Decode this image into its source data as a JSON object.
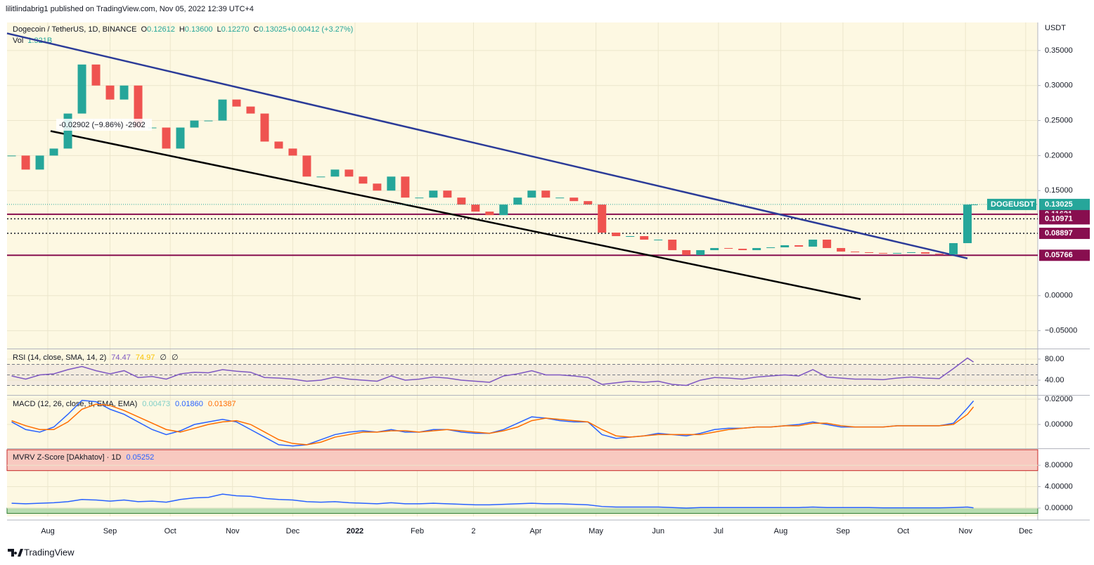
{
  "header": {
    "publisher": "lilitlindabrig1 published on TradingView.com, Nov 05, 2022 12:39 UTC+4",
    "brand": "TradingView"
  },
  "chart_data": [
    {
      "type": "candlestick",
      "title": "Dogecoin / TetherUS, 1D, BINANCE",
      "quote": [
        {
          "label": "O",
          "value": "0.12612"
        },
        {
          "label": "H",
          "value": "0.13600"
        },
        {
          "label": "L",
          "value": "0.12270"
        },
        {
          "label": "C",
          "value": "0.13025"
        },
        {
          "label": "",
          "value": "+0.00412 (+3.27%)"
        }
      ],
      "volume_label": "Vol",
      "volume_value": "1.321B",
      "unit": "USDT",
      "up_color": "#26a69a",
      "down_color": "#ef5350",
      "x": [
        -18,
        -11,
        -4,
        3,
        10,
        17,
        24,
        31,
        38,
        45,
        52,
        59,
        66,
        73,
        80,
        87,
        94,
        101,
        108,
        115,
        122,
        129,
        136,
        143,
        150,
        157,
        164,
        171,
        178,
        185,
        192,
        199,
        206,
        213,
        220,
        227,
        234,
        241,
        248,
        255,
        262,
        269,
        276,
        283,
        290,
        297,
        304,
        311,
        318,
        325,
        332,
        339,
        346,
        353,
        360,
        367,
        374,
        381,
        388,
        395,
        402,
        409,
        416,
        423,
        430,
        437,
        444,
        451,
        458,
        461
      ],
      "values": [
        0.2,
        0.18,
        0.2,
        0.21,
        0.26,
        0.33,
        0.3,
        0.28,
        0.3,
        0.24,
        0.24,
        0.21,
        0.24,
        0.25,
        0.25,
        0.28,
        0.27,
        0.26,
        0.22,
        0.21,
        0.2,
        0.17,
        0.17,
        0.18,
        0.17,
        0.16,
        0.15,
        0.17,
        0.14,
        0.14,
        0.15,
        0.14,
        0.13,
        0.12,
        0.115,
        0.13,
        0.14,
        0.15,
        0.14,
        0.14,
        0.135,
        0.13,
        0.09,
        0.085,
        0.085,
        0.08,
        0.08,
        0.065,
        0.058,
        0.065,
        0.068,
        0.067,
        0.065,
        0.068,
        0.069,
        0.072,
        0.07,
        0.08,
        0.068,
        0.063,
        0.062,
        0.061,
        0.06,
        0.061,
        0.062,
        0.06,
        0.059,
        0.075,
        0.13,
        0.13025
      ],
      "last_label": "DOGEUSDT",
      "xlim": [
        -20.3,
        493
      ],
      "xticks": [
        {
          "value": 0,
          "label": "Aug"
        },
        {
          "value": 31,
          "label": "Sep"
        },
        {
          "value": 61,
          "label": "Oct"
        },
        {
          "value": 92,
          "label": "Nov"
        },
        {
          "value": 122,
          "label": "Dec"
        },
        {
          "value": 153,
          "label": "2022"
        },
        {
          "value": 184,
          "label": "Feb"
        },
        {
          "value": 212,
          "label": "2"
        },
        {
          "value": 243,
          "label": "Apr"
        },
        {
          "value": 273,
          "label": "May"
        },
        {
          "value": 304,
          "label": "Jun"
        },
        {
          "value": 334,
          "label": "Jul"
        },
        {
          "value": 365,
          "label": "Aug"
        },
        {
          "value": 396,
          "label": "Sep"
        },
        {
          "value": 426,
          "label": "Oct"
        },
        {
          "value": 457,
          "label": "Nov"
        },
        {
          "value": 487,
          "label": "Dec"
        }
      ],
      "ylim": [
        -0.0745,
        0.39
      ],
      "yticks": [
        {
          "value": 0.35,
          "label": "0.35000"
        },
        {
          "value": 0.3,
          "label": "0.30000"
        },
        {
          "value": 0.25,
          "label": "0.25000"
        },
        {
          "value": 0.2,
          "label": "0.20000"
        },
        {
          "value": 0.15,
          "label": "0.15000"
        },
        {
          "value": 0,
          "label": "0.00000"
        },
        {
          "value": -0.05,
          "label": "−0.05000"
        }
      ],
      "levels": [
        {
          "value": 0.11621,
          "style": "solid"
        },
        {
          "value": 0.10971,
          "style": "dotted"
        },
        {
          "value": 0.08897,
          "style": "dotted"
        },
        {
          "value": 0.05766,
          "style": "solid"
        }
      ],
      "level_color": "#880e4f",
      "trendlines": [
        {
          "x": [
            -20.3,
            458
          ],
          "y": [
            0.3745,
            0.0532
          ],
          "color": "#2b3b98"
        },
        {
          "x": [
            1.4,
            404.8
          ],
          "y": [
            0.235,
            -0.005
          ],
          "color": "#000000"
        }
      ],
      "annotation": "-0.02902 (−9.86%) -2902",
      "grid": true
    },
    {
      "type": "line",
      "title": "RSI (14, close, SMA, 14, 2)",
      "legend_values": [
        {
          "text": "74.47",
          "color": "#7e57c2"
        },
        {
          "text": "74.97",
          "color": "#f9c300"
        },
        {
          "text": "∅",
          "color": "#131722"
        },
        {
          "text": "∅",
          "color": "#131722"
        }
      ],
      "series": [
        {
          "color": "#7e57c2",
          "values": [
            48,
            42,
            50,
            52,
            60,
            66,
            58,
            52,
            58,
            45,
            47,
            42,
            52,
            55,
            54,
            60,
            57,
            55,
            45,
            44,
            42,
            38,
            40,
            46,
            42,
            40,
            38,
            48,
            40,
            42,
            46,
            44,
            40,
            38,
            36,
            48,
            52,
            58,
            50,
            50,
            48,
            45,
            32,
            35,
            38,
            36,
            38,
            32,
            30,
            40,
            45,
            44,
            42,
            46,
            48,
            50,
            48,
            60,
            46,
            44,
            42,
            42,
            41,
            44,
            46,
            44,
            43,
            62,
            82,
            74.47
          ]
        }
      ],
      "bands": [
        30,
        50,
        70
      ],
      "ylim": [
        13.3,
        97.3
      ],
      "yticks": [
        {
          "value": 80,
          "label": "80.00"
        },
        {
          "value": 40,
          "label": "40.00"
        }
      ]
    },
    {
      "type": "line",
      "title": "MACD (12, 26, close, 9, EMA, EMA)",
      "legend_values": [
        {
          "text": "0.00473",
          "color": "#7fcfc7"
        },
        {
          "text": "0.01860",
          "color": "#2962ff"
        },
        {
          "text": "0.01387",
          "color": "#ff6d00"
        }
      ],
      "series": [
        {
          "color": "#2962ff",
          "values": [
            0.002,
            -0.004,
            -0.006,
            -0.002,
            0.008,
            0.019,
            0.018,
            0.012,
            0.008,
            0.002,
            -0.004,
            -0.008,
            -0.005,
            0,
            0.002,
            0.004,
            0.002,
            -0.004,
            -0.01,
            -0.016,
            -0.017,
            -0.016,
            -0.012,
            -0.008,
            -0.006,
            -0.005,
            -0.006,
            -0.004,
            -0.006,
            -0.006,
            -0.004,
            -0.004,
            -0.006,
            -0.007,
            -0.007,
            -0.004,
            0.001,
            0.006,
            0.005,
            0.003,
            0.002,
            0.002,
            -0.008,
            -0.011,
            -0.01,
            -0.009,
            -0.007,
            -0.008,
            -0.009,
            -0.007,
            -0.004,
            -0.003,
            -0.003,
            -0.002,
            -0.002,
            -0.001,
            0,
            0.002,
            0,
            -0.002,
            -0.002,
            -0.002,
            -0.002,
            -0.001,
            -0.001,
            -0.001,
            -0.001,
            0.001,
            0.013,
            0.0186
          ]
        },
        {
          "color": "#ff6d00",
          "values": [
            0.003,
            -0.001,
            -0.004,
            -0.004,
            0.002,
            0.012,
            0.016,
            0.015,
            0.011,
            0.006,
            0.001,
            -0.004,
            -0.006,
            -0.003,
            0,
            0.002,
            0.003,
            0,
            -0.006,
            -0.012,
            -0.015,
            -0.016,
            -0.014,
            -0.01,
            -0.008,
            -0.006,
            -0.006,
            -0.005,
            -0.005,
            -0.006,
            -0.005,
            -0.004,
            -0.005,
            -0.006,
            -0.007,
            -0.005,
            -0.002,
            0.003,
            0.005,
            0.004,
            0.003,
            0.002,
            -0.004,
            -0.009,
            -0.01,
            -0.009,
            -0.008,
            -0.008,
            -0.008,
            -0.008,
            -0.006,
            -0.004,
            -0.003,
            -0.002,
            -0.002,
            -0.001,
            -0.001,
            0.001,
            0.001,
            -0.001,
            -0.002,
            -0.002,
            -0.002,
            -0.001,
            -0.001,
            -0.001,
            -0.001,
            0,
            0.008,
            0.01387
          ]
        }
      ],
      "ylim": [
        -0.0183,
        0.0222
      ],
      "yticks": [
        {
          "value": 0.02,
          "label": "0.02000"
        },
        {
          "value": 0,
          "label": "0.00000"
        }
      ]
    },
    {
      "type": "line",
      "title": "MVRV Z-Score [DAkhatov] · 1D",
      "legend_values": [
        {
          "text": "0.05252",
          "color": "#2962ff"
        }
      ],
      "series": [
        {
          "color": "#2962ff",
          "values": [
            0.9,
            0.8,
            0.9,
            1.0,
            1.2,
            1.6,
            1.5,
            1.3,
            1.5,
            1.2,
            1.3,
            1.1,
            1.6,
            1.9,
            2.0,
            2.6,
            2.3,
            2.2,
            1.8,
            1.6,
            1.5,
            1.2,
            1.1,
            1.2,
            1.0,
            0.9,
            0.8,
            1.0,
            0.8,
            0.8,
            0.9,
            0.8,
            0.7,
            0.6,
            0.6,
            0.7,
            0.8,
            0.9,
            0.8,
            0.8,
            0.7,
            0.6,
            0.3,
            0.2,
            0.2,
            0.2,
            0.2,
            0.1,
            0.0,
            0.1,
            0.1,
            0.1,
            0.1,
            0.1,
            0.1,
            0.1,
            0.1,
            0.2,
            0.1,
            0.1,
            0.1,
            0.1,
            0.05,
            0.05,
            0.05,
            0.05,
            0.05,
            0.1,
            0.2,
            0.05252
          ]
        }
      ],
      "zones": [
        {
          "from": 7,
          "to": 10.9,
          "color": "#f8c9c0",
          "edge": "#c62828"
        },
        {
          "from": -1,
          "to": 0,
          "color": "#b7dcb0",
          "edge": "#2e7d32"
        }
      ],
      "ylim": [
        -1.58,
        10.9
      ],
      "yticks": [
        {
          "value": 8,
          "label": "8.00000"
        },
        {
          "value": 4,
          "label": "4.00000"
        },
        {
          "value": 0,
          "label": "0.00000"
        }
      ]
    }
  ]
}
